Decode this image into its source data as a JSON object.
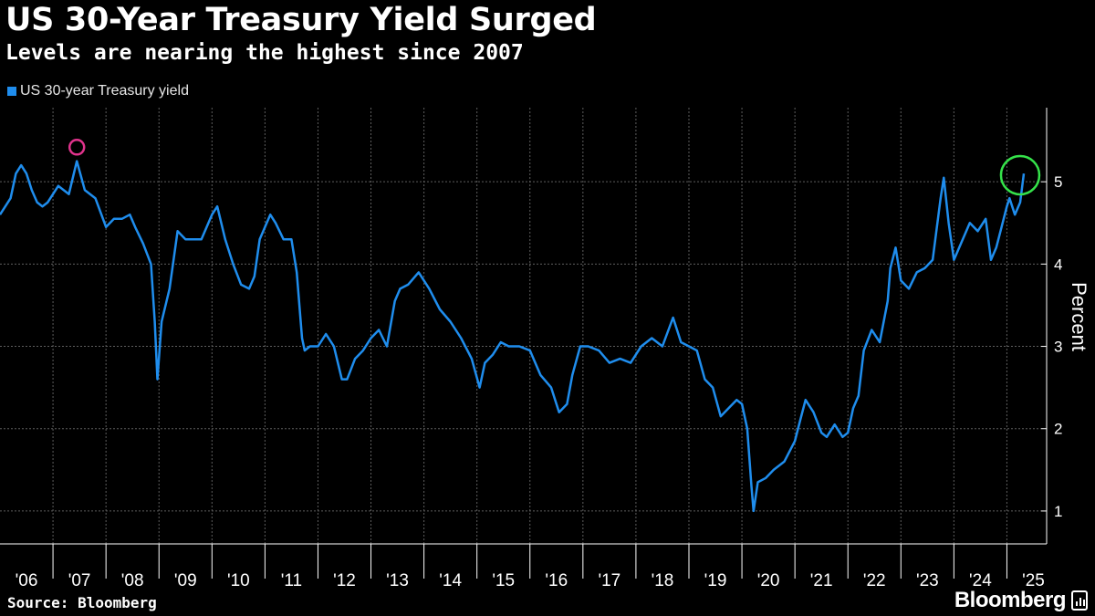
{
  "header": {
    "title": "US 30-Year Treasury Yield Surged",
    "subtitle": "Levels are nearing the highest since 2007"
  },
  "footer": {
    "source": "Source: Bloomberg",
    "brand": "Bloomberg"
  },
  "colors": {
    "background": "#000000",
    "series": "#1f8ded",
    "grid": "#5e5e5e",
    "highlight_2007": "#e0338c",
    "highlight_2025": "#35e24a"
  },
  "chart_data": {
    "type": "line",
    "title": "US 30-Year Treasury Yield Surged",
    "subtitle": "Levels are nearing the highest since 2007",
    "ylabel": "Percent",
    "xlabel": "",
    "ylim": [
      0.6,
      5.9
    ],
    "xlim": [
      2006.0,
      2025.75
    ],
    "y_ticks": [
      1,
      2,
      3,
      4,
      5
    ],
    "x_ticks": [
      {
        "year": 2006,
        "label": "'06"
      },
      {
        "year": 2007,
        "label": "'07"
      },
      {
        "year": 2008,
        "label": "'08"
      },
      {
        "year": 2009,
        "label": "'09"
      },
      {
        "year": 2010,
        "label": "'10"
      },
      {
        "year": 2011,
        "label": "'11"
      },
      {
        "year": 2012,
        "label": "'12"
      },
      {
        "year": 2013,
        "label": "'13"
      },
      {
        "year": 2014,
        "label": "'14"
      },
      {
        "year": 2015,
        "label": "'15"
      },
      {
        "year": 2016,
        "label": "'16"
      },
      {
        "year": 2017,
        "label": "'17"
      },
      {
        "year": 2018,
        "label": "'18"
      },
      {
        "year": 2019,
        "label": "'19"
      },
      {
        "year": 2020,
        "label": "'20"
      },
      {
        "year": 2021,
        "label": "'21"
      },
      {
        "year": 2022,
        "label": "'22"
      },
      {
        "year": 2023,
        "label": "'23"
      },
      {
        "year": 2024,
        "label": "'24"
      },
      {
        "year": 2025,
        "label": "'25"
      }
    ],
    "grid": true,
    "legend_position": "top-left",
    "series": [
      {
        "name": "US 30-year Treasury yield",
        "x": [
          2006.0,
          2006.1,
          2006.2,
          2006.3,
          2006.4,
          2006.5,
          2006.6,
          2006.7,
          2006.8,
          2006.9,
          2007.0,
          2007.1,
          2007.2,
          2007.3,
          2007.45,
          2007.6,
          2007.8,
          2008.0,
          2008.15,
          2008.3,
          2008.45,
          2008.55,
          2008.7,
          2008.85,
          2008.92,
          2008.97,
          2009.05,
          2009.2,
          2009.35,
          2009.5,
          2009.65,
          2009.8,
          2010.0,
          2010.1,
          2010.25,
          2010.4,
          2010.55,
          2010.7,
          2010.8,
          2010.9,
          2011.0,
          2011.1,
          2011.2,
          2011.35,
          2011.5,
          2011.6,
          2011.7,
          2011.75,
          2011.85,
          2012.0,
          2012.15,
          2012.3,
          2012.45,
          2012.55,
          2012.7,
          2012.85,
          2013.0,
          2013.15,
          2013.3,
          2013.45,
          2013.55,
          2013.7,
          2013.9,
          2014.1,
          2014.3,
          2014.5,
          2014.7,
          2014.9,
          2015.05,
          2015.15,
          2015.3,
          2015.45,
          2015.6,
          2015.8,
          2016.0,
          2016.2,
          2016.4,
          2016.55,
          2016.7,
          2016.8,
          2016.95,
          2017.1,
          2017.3,
          2017.5,
          2017.7,
          2017.9,
          2018.1,
          2018.3,
          2018.5,
          2018.7,
          2018.85,
          2019.0,
          2019.15,
          2019.3,
          2019.45,
          2019.6,
          2019.75,
          2019.9,
          2020.0,
          2020.1,
          2020.18,
          2020.22,
          2020.3,
          2020.45,
          2020.6,
          2020.8,
          2021.0,
          2021.1,
          2021.2,
          2021.35,
          2021.5,
          2021.6,
          2021.75,
          2021.9,
          2022.0,
          2022.1,
          2022.2,
          2022.3,
          2022.45,
          2022.6,
          2022.75,
          2022.8,
          2022.9,
          2023.0,
          2023.15,
          2023.3,
          2023.45,
          2023.6,
          2023.75,
          2023.81,
          2023.9,
          2024.0,
          2024.1,
          2024.3,
          2024.45,
          2024.6,
          2024.7,
          2024.8,
          2024.9,
          2025.0,
          2025.05,
          2025.15,
          2025.25,
          2025.32
        ],
        "values": [
          4.6,
          4.7,
          4.8,
          5.1,
          5.2,
          5.1,
          4.9,
          4.75,
          4.7,
          4.75,
          4.85,
          4.95,
          4.9,
          4.85,
          5.25,
          4.9,
          4.8,
          4.45,
          4.55,
          4.55,
          4.6,
          4.45,
          4.25,
          4.0,
          3.3,
          2.6,
          3.3,
          3.7,
          4.4,
          4.3,
          4.3,
          4.3,
          4.6,
          4.7,
          4.3,
          4.0,
          3.75,
          3.7,
          3.85,
          4.3,
          4.45,
          4.6,
          4.5,
          4.3,
          4.3,
          3.9,
          3.1,
          2.95,
          3.0,
          3.0,
          3.15,
          3.0,
          2.6,
          2.6,
          2.85,
          2.95,
          3.1,
          3.2,
          3.0,
          3.55,
          3.7,
          3.75,
          3.9,
          3.7,
          3.45,
          3.3,
          3.1,
          2.85,
          2.5,
          2.8,
          2.9,
          3.05,
          3.0,
          3.0,
          2.95,
          2.65,
          2.5,
          2.2,
          2.3,
          2.65,
          3.0,
          3.0,
          2.95,
          2.8,
          2.85,
          2.8,
          3.0,
          3.1,
          3.0,
          3.35,
          3.05,
          3.0,
          2.95,
          2.6,
          2.5,
          2.15,
          2.25,
          2.35,
          2.3,
          2.0,
          1.3,
          1.0,
          1.35,
          1.4,
          1.5,
          1.6,
          1.85,
          2.1,
          2.35,
          2.2,
          1.95,
          1.9,
          2.05,
          1.9,
          1.95,
          2.25,
          2.4,
          2.95,
          3.2,
          3.05,
          3.55,
          3.95,
          4.2,
          3.8,
          3.7,
          3.9,
          3.95,
          4.05,
          4.8,
          5.05,
          4.5,
          4.05,
          4.2,
          4.5,
          4.4,
          4.55,
          4.05,
          4.2,
          4.45,
          4.7,
          4.8,
          4.6,
          4.75,
          5.1
        ]
      }
    ],
    "annotations": [
      {
        "type": "circle",
        "x": 2007.45,
        "y": 5.42,
        "color": "magenta"
      },
      {
        "type": "circle",
        "x": 2025.25,
        "y": 5.08,
        "color": "green"
      }
    ]
  }
}
